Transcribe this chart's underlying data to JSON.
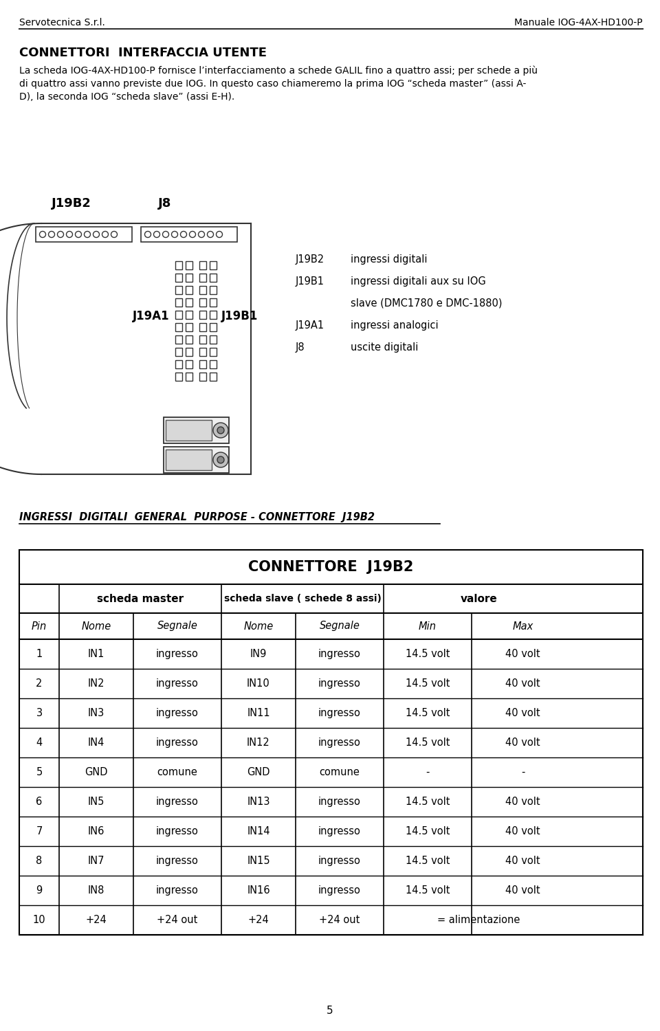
{
  "header_left": "Servotecnica S.r.l.",
  "header_right": "Manuale IOG-4AX-HD100-P",
  "section_title": "CONNETTORI  INTERFACCIA UTENTE",
  "body_text1": "La scheda IOG-4AX-HD100-P fornisce l’interfacciamento a schede GALIL fino a quattro assi; per schede a più",
  "body_text2": "di quattro assi vanno previste due IOG. In questo caso chiameremo la prima IOG “scheda master” (assi A-",
  "body_text3": "D), la seconda IOG “scheda slave” (assi E-H).",
  "section2_title": "INGRESSI  DIGITALI  GENERAL  PURPOSE - CONNETTORE  J19B2",
  "table_title": "CONNETTORE  J19B2",
  "col_headers_sub": [
    "Pin",
    "Nome",
    "Segnale",
    "Nome",
    "Segnale",
    "Min",
    "Max"
  ],
  "table_rows": [
    [
      "1",
      "IN1",
      "ingresso",
      "IN9",
      "ingresso",
      "14.5 volt",
      "40 volt"
    ],
    [
      "2",
      "IN2",
      "ingresso",
      "IN10",
      "ingresso",
      "14.5 volt",
      "40 volt"
    ],
    [
      "3",
      "IN3",
      "ingresso",
      "IN11",
      "ingresso",
      "14.5 volt",
      "40 volt"
    ],
    [
      "4",
      "IN4",
      "ingresso",
      "IN12",
      "ingresso",
      "14.5 volt",
      "40 volt"
    ],
    [
      "5",
      "GND",
      "comune",
      "GND",
      "comune",
      "-",
      "-"
    ],
    [
      "6",
      "IN5",
      "ingresso",
      "IN13",
      "ingresso",
      "14.5 volt",
      "40 volt"
    ],
    [
      "7",
      "IN6",
      "ingresso",
      "IN14",
      "ingresso",
      "14.5 volt",
      "40 volt"
    ],
    [
      "8",
      "IN7",
      "ingresso",
      "IN15",
      "ingresso",
      "14.5 volt",
      "40 volt"
    ],
    [
      "9",
      "IN8",
      "ingresso",
      "IN16",
      "ingresso",
      "14.5 volt",
      "40 volt"
    ],
    [
      "10",
      "+24",
      "+24 out",
      "+24",
      "+24 out",
      "= alimentazione",
      ""
    ]
  ],
  "page_number": "5",
  "bg_color": "#ffffff",
  "text_color": "#000000"
}
